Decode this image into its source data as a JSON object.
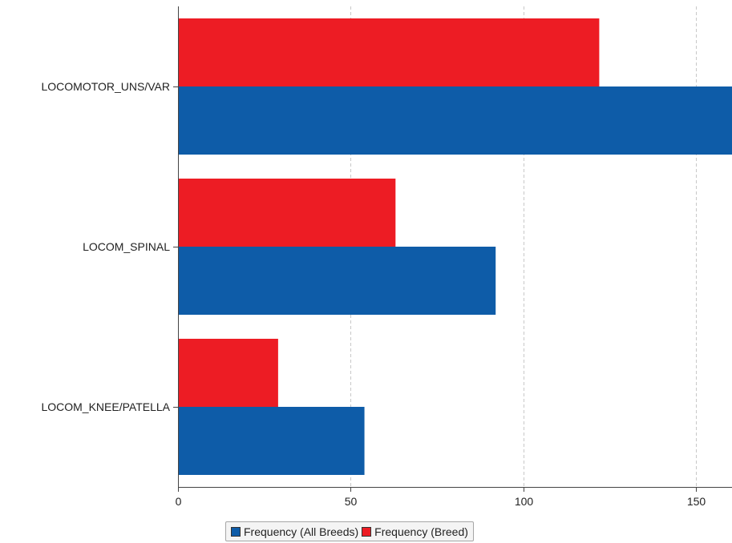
{
  "colors": {
    "all_breeds": "#0e5ca8",
    "breed": "#ed1c24",
    "grid": "#c8c8c8",
    "axis": "#444444"
  },
  "chart_data": {
    "type": "bar",
    "orientation": "horizontal",
    "categories": [
      "LOCOMOTOR_UNS/VAR",
      "LOCOM_SPINAL",
      "LOCOM_KNEE/PATELLA"
    ],
    "series": [
      {
        "name": "Frequency (Breed)",
        "values": [
          122,
          63,
          29
        ]
      },
      {
        "name": "Frequency (All Breeds)",
        "values": [
          165,
          92,
          54
        ]
      }
    ],
    "xlim": [
      0,
      160
    ],
    "xticks": [
      0,
      50,
      100,
      150
    ],
    "title": "",
    "xlabel": "",
    "ylabel": "",
    "grid": "vertical dashed",
    "legend_position": "bottom"
  },
  "legend": {
    "items": [
      {
        "label": "Frequency (All Breeds)",
        "series": "all_breeds"
      },
      {
        "label": "Frequency (Breed)",
        "series": "breed"
      }
    ]
  }
}
